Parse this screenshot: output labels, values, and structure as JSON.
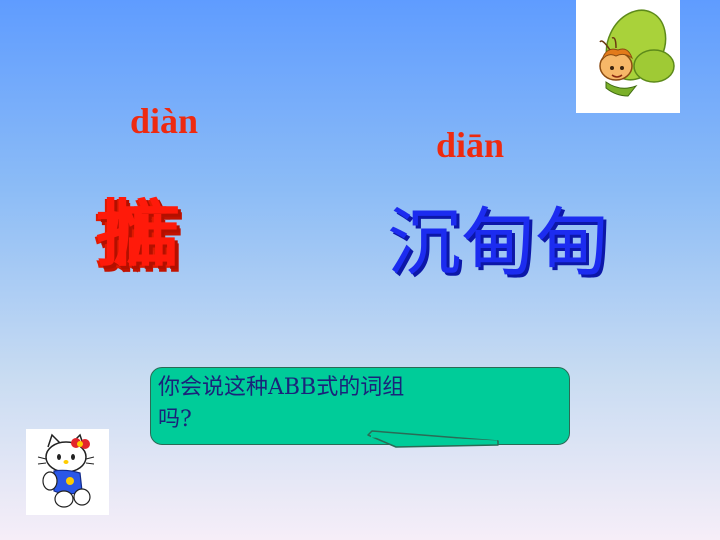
{
  "pinyin": {
    "left": "diàn",
    "right": "diān"
  },
  "characters": {
    "left": "掂惦",
    "right": "沉甸甸"
  },
  "bubble": {
    "line1": "你会说这种ABB式的词组",
    "line2": "吗?"
  },
  "colors": {
    "pinyin": "#ee2a10",
    "left_chars": "#ff1a0a",
    "right_chars": "#1c2cf0",
    "bubble_fill": "#00cc99",
    "bubble_text": "#1a237a"
  },
  "icons": {
    "top_right": "butterfly-fairy-icon",
    "bottom_left": "hello-kitty-icon"
  }
}
